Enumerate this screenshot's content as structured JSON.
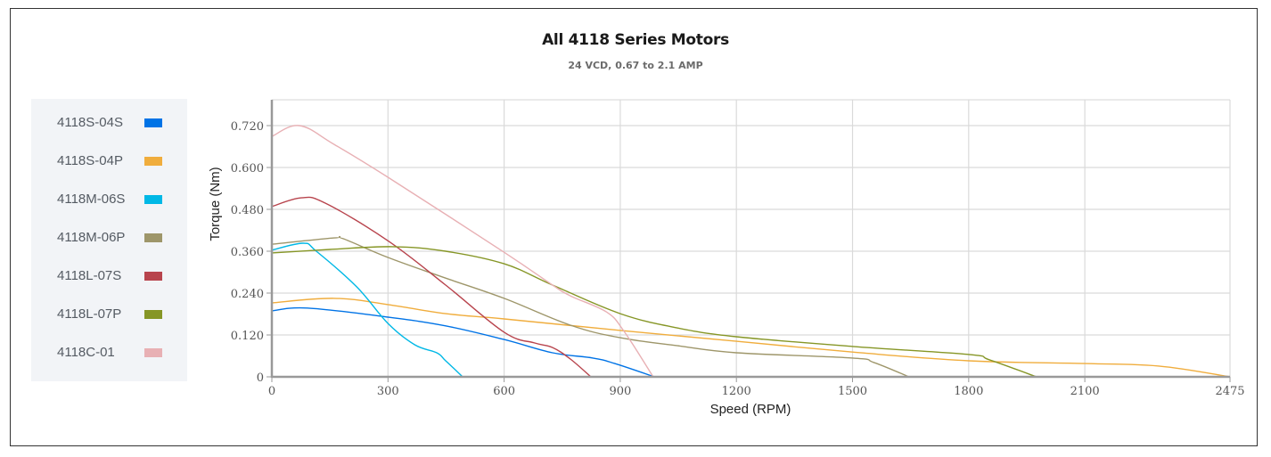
{
  "chart_data": {
    "type": "line",
    "title": "All 4118 Series Motors",
    "subtitle": "24 VCD, 0.67 to 2.1 AMP",
    "xlabel": "Speed (RPM)",
    "ylabel": "Torque (Nm)",
    "xlim": [
      0,
      2475
    ],
    "ylim": [
      0,
      0.78
    ],
    "xticks": [
      0,
      300,
      600,
      900,
      1200,
      1500,
      1800,
      2100,
      2475
    ],
    "xtick_labels": [
      "0",
      "300",
      "600",
      "900",
      "1200",
      "1500",
      "1800",
      "2100",
      "2475"
    ],
    "yticks": [
      0,
      0.12,
      0.24,
      0.36,
      0.48,
      0.6,
      0.72
    ],
    "ytick_labels": [
      "0",
      "0.120",
      "0.240",
      "0.360",
      "0.480",
      "0.600",
      "0.720"
    ],
    "grid": true,
    "legend_position": "left",
    "series": [
      {
        "name": "4118S-04S",
        "color": "#0073e6",
        "x": [
          0,
          92,
          300,
          449,
          600,
          725,
          829,
          886,
          988
        ],
        "y": [
          0.189,
          0.197,
          0.171,
          0.146,
          0.107,
          0.069,
          0.054,
          0.038,
          0
        ]
      },
      {
        "name": "4118S-04P",
        "color": "#f0ad3d",
        "x": [
          0,
          161,
          300,
          449,
          600,
          900,
          1200,
          1500,
          1800,
          2100,
          2291,
          2475
        ],
        "y": [
          0.212,
          0.225,
          0.207,
          0.181,
          0.166,
          0.133,
          0.102,
          0.071,
          0.046,
          0.038,
          0.031,
          0
        ]
      },
      {
        "name": "4118M-06S",
        "color": "#00b8e6",
        "x": [
          0,
          81,
          115,
          219,
          300,
          369,
          426,
          449,
          493
        ],
        "y": [
          0.363,
          0.383,
          0.36,
          0.258,
          0.153,
          0.092,
          0.069,
          0.046,
          0
        ]
      },
      {
        "name": "4118M-06P",
        "color": "#9e966a",
        "x": [
          0,
          161,
          184,
          300,
          449,
          600,
          771,
          900,
          1048,
          1200,
          1500,
          1555,
          1646
        ],
        "y": [
          0.38,
          0.398,
          0.396,
          0.342,
          0.283,
          0.225,
          0.148,
          0.112,
          0.089,
          0.069,
          0.054,
          0.041,
          0
        ]
      },
      {
        "name": "4118L-07S",
        "color": "#b8444d",
        "x": [
          0,
          76,
          138,
          300,
          449,
          600,
          679,
          725,
          771,
          824
        ],
        "y": [
          0.488,
          0.513,
          0.498,
          0.39,
          0.263,
          0.128,
          0.097,
          0.084,
          0.051,
          0
        ]
      },
      {
        "name": "4118L-07P",
        "color": "#869626",
        "x": [
          0,
          150,
          311,
          449,
          600,
          725,
          900,
          1048,
          1200,
          1500,
          1800,
          1853,
          1975
        ],
        "y": [
          0.355,
          0.365,
          0.373,
          0.36,
          0.324,
          0.263,
          0.181,
          0.14,
          0.115,
          0.087,
          0.064,
          0.049,
          0
        ]
      },
      {
        "name": "4118C-01",
        "color": "#e8b0b4",
        "x": [
          0,
          71,
          161,
          300,
          600,
          725,
          771,
          864,
          910,
          985
        ],
        "y": [
          0.689,
          0.72,
          0.666,
          0.572,
          0.357,
          0.263,
          0.232,
          0.186,
          0.13,
          0
        ]
      }
    ]
  }
}
